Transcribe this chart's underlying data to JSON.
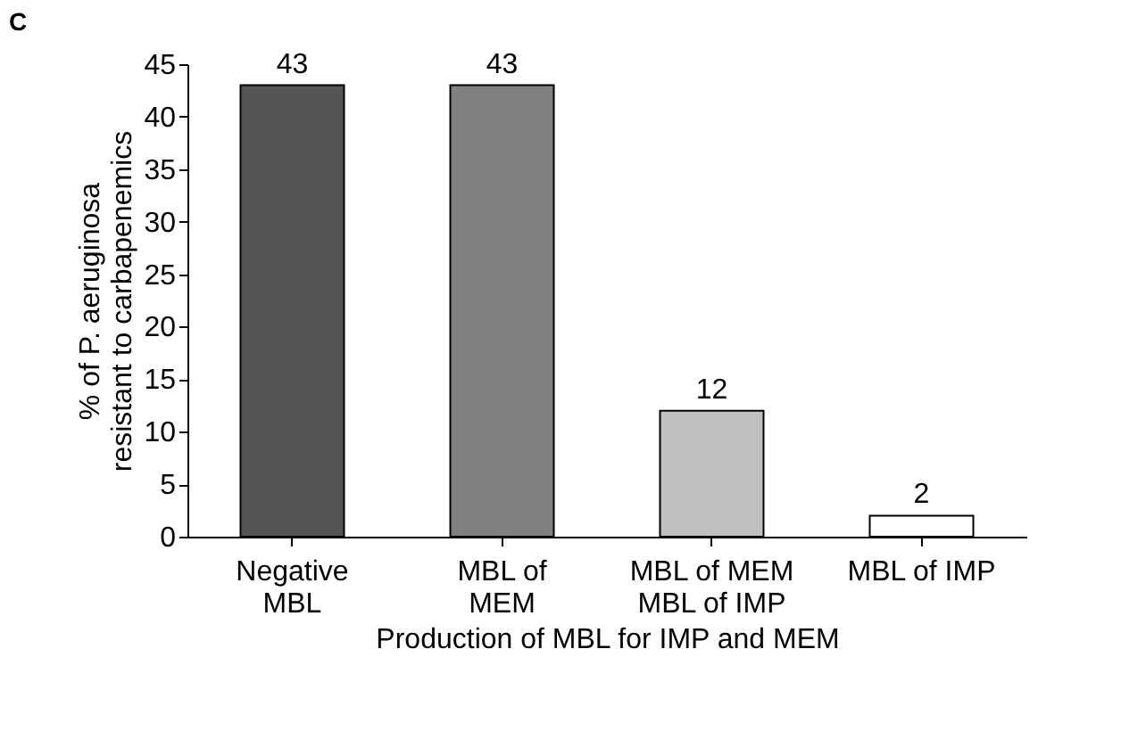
{
  "chart_data": {
    "type": "bar",
    "title": "C",
    "categories": [
      "Negative\nMBL",
      "MBL of\nMEM",
      "MBL of MEM\nMBL of IMP",
      "MBL of IMP"
    ],
    "values": [
      43,
      43,
      12,
      2
    ],
    "colors": [
      "#555555",
      "#808080",
      "#c0c0c0",
      "#ffffff"
    ],
    "xlabel": "Production of MBL for IMP and MEM",
    "ylabel": "% of P. aeruginosa\nresistant to carbapenemics",
    "ylim": [
      0,
      45
    ],
    "yticks": [
      0,
      5,
      10,
      15,
      20,
      25,
      30,
      35,
      40,
      45
    ],
    "data_labels": true,
    "grid": false
  }
}
